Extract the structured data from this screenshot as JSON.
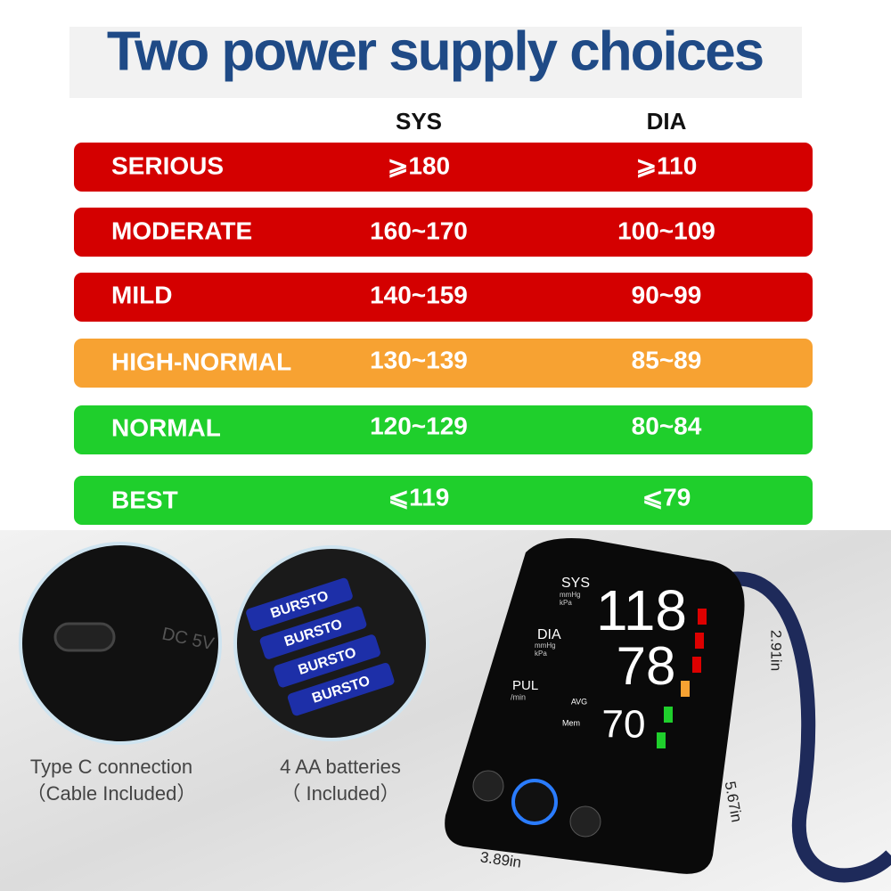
{
  "header": {
    "title": "Two power supply choices"
  },
  "table": {
    "columns": [
      "SYS",
      "DIA"
    ],
    "rows": [
      [
        "SERIOUS",
        "⩾180",
        "⩾110"
      ],
      [
        "MODERATE",
        "160~170",
        "100~109"
      ],
      [
        "MILD",
        "140~159",
        "90~99"
      ],
      [
        "HIGH-NORMAL",
        "130~139",
        "85~89"
      ],
      [
        "NORMAL",
        "120~129",
        "80~84"
      ],
      [
        "BEST",
        "⩽119",
        "⩽79"
      ]
    ]
  },
  "features": [
    {
      "label": "Type C connection",
      "note": "（Cable Included）",
      "port": "DC 5V"
    },
    {
      "label": "4 AA batteries",
      "note": "（ Included）",
      "brand": "BURSTO"
    }
  ],
  "device": {
    "sys_label": "SYS",
    "dia_label": "DIA",
    "unit": "mmHg",
    "unit2": "kPa",
    "pul_label": "PUL",
    "pul_unit": "/min",
    "sys_value": "118",
    "dia_value": "78",
    "pul_value": "70",
    "avg": "AVG",
    "mem": "Mem"
  },
  "dimensions": {
    "height": "2.91in",
    "depth": "5.67in",
    "width": "3.89in"
  }
}
